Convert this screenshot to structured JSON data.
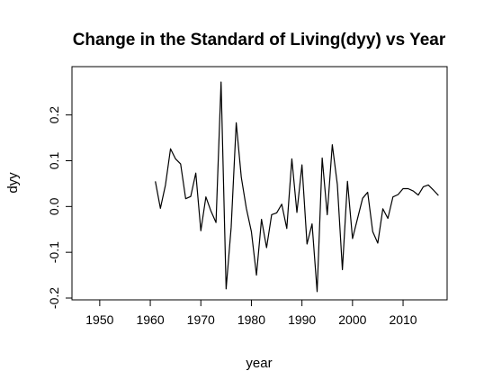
{
  "chart_data": {
    "type": "line",
    "title": "Change in the Standard of Living(dyy) vs Year",
    "xlabel": "year",
    "ylabel": "dyy",
    "xlim": [
      1947,
      2018
    ],
    "ylim": [
      -0.2,
      0.28
    ],
    "xticks": [
      1950,
      1960,
      1970,
      1980,
      1990,
      2000,
      2010
    ],
    "yticks": [
      -0.2,
      -0.1,
      0.0,
      0.1,
      0.2
    ],
    "ytick_labels": [
      "-0.2",
      "-0.1",
      "0.0",
      "0.1",
      "0.2"
    ],
    "grid": false,
    "series": [
      {
        "x": [
          1961,
          1962,
          1963,
          1964,
          1965,
          1966,
          1967,
          1968,
          1969,
          1970,
          1971,
          1972,
          1973,
          1974,
          1975,
          1976,
          1977,
          1978,
          1979,
          1980,
          1981,
          1982,
          1983,
          1984,
          1985,
          1986,
          1987,
          1988,
          1989,
          1990,
          1991,
          1992,
          1993,
          1994,
          1995,
          1996,
          1997,
          1998,
          1999,
          2000,
          2001,
          2002,
          2003,
          2004,
          2005,
          2006,
          2007,
          2008,
          2009,
          2010,
          2011,
          2012,
          2013,
          2014,
          2015,
          2016,
          2017
        ],
        "values": [
          0.055,
          -0.004,
          0.047,
          0.126,
          0.104,
          0.093,
          0.017,
          0.022,
          0.073,
          -0.053,
          0.021,
          -0.01,
          -0.035,
          0.272,
          -0.18,
          -0.045,
          0.183,
          0.064,
          -0.004,
          -0.055,
          -0.15,
          -0.028,
          -0.09,
          -0.018,
          -0.014,
          0.005,
          -0.048,
          0.104,
          -0.013,
          0.091,
          -0.082,
          -0.038,
          -0.186,
          0.106,
          -0.018,
          0.135,
          0.048,
          -0.138,
          0.055,
          -0.07,
          -0.026,
          0.018,
          0.031,
          -0.055,
          -0.08,
          -0.005,
          -0.026,
          0.021,
          0.026,
          0.039,
          0.039,
          0.034,
          0.025,
          0.043,
          0.047,
          0.036,
          0.024
        ]
      }
    ]
  }
}
